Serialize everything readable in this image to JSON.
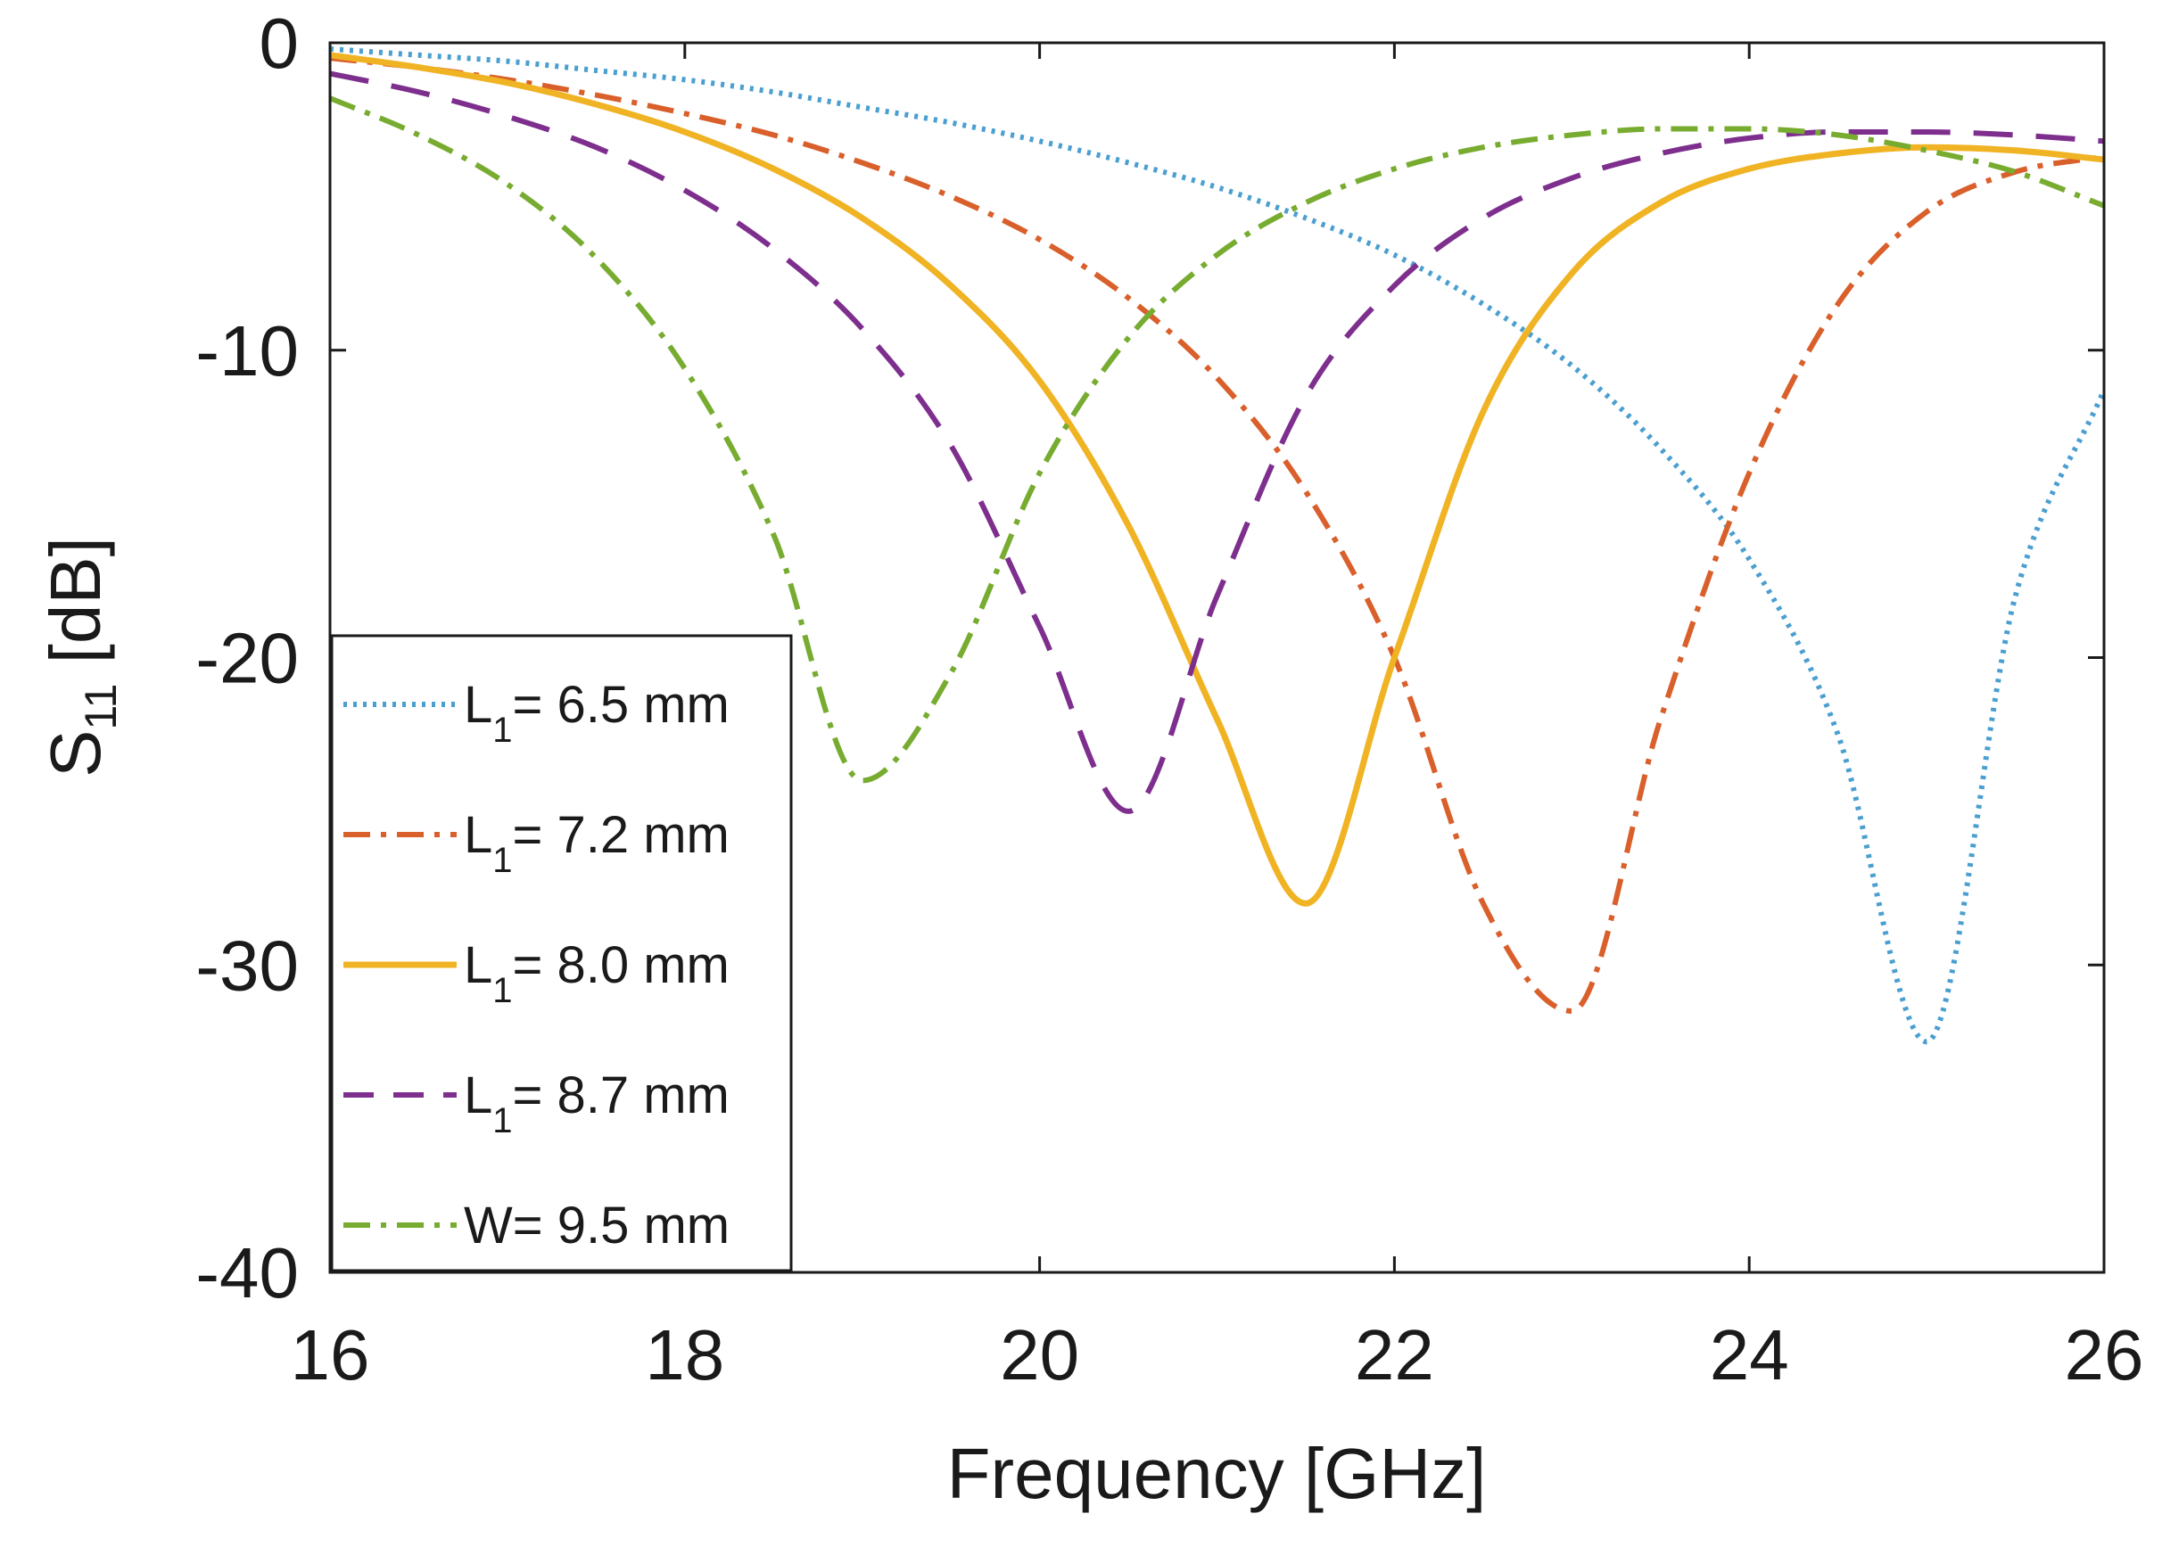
{
  "chart_data": {
    "type": "line",
    "title": "",
    "xlabel": "Frequency [GHz]",
    "ylabel": {
      "main": "S",
      "sub": "11",
      "unit": " [dB]"
    },
    "xlim": [
      16,
      26
    ],
    "ylim": [
      -40,
      0
    ],
    "xticks": [
      16,
      18,
      20,
      22,
      24,
      26
    ],
    "yticks": [
      0,
      -10,
      -20,
      -30,
      -40
    ],
    "xtick_labels": [
      "16",
      "18",
      "20",
      "22",
      "24",
      "26"
    ],
    "ytick_labels": [
      "0",
      "-10",
      "-20",
      "-30",
      "-40"
    ],
    "grid": false,
    "legend_position": "bottom-left",
    "x": [
      16,
      16.5,
      17,
      17.5,
      18,
      18.5,
      19,
      19.5,
      20,
      20.5,
      21,
      21.5,
      22,
      22.5,
      23,
      23.5,
      24,
      24.5,
      25,
      25.5,
      26
    ],
    "series": [
      {
        "name": "L1 = 6.5 mm",
        "legend": {
          "pre": "L",
          "sub": "1",
          "post": "= 6.5 mm"
        },
        "color": "#4a9fd0",
        "dash": "dotted",
        "values": [
          -0.2,
          -0.4,
          -0.6,
          -0.9,
          -1.2,
          -1.6,
          -2.1,
          -2.6,
          -3.2,
          -3.9,
          -4.7,
          -5.7,
          -6.9,
          -8.5,
          -10.5,
          -13.2,
          -16.8,
          -22.5,
          -32.5,
          -18.0,
          -11.3
        ]
      },
      {
        "name": "L1 = 7.2 mm",
        "legend": {
          "pre": "L",
          "sub": "1",
          "post": "= 7.2 mm"
        },
        "color": "#d95f2b",
        "dash": "dashdot",
        "values": [
          -0.5,
          -0.8,
          -1.2,
          -1.7,
          -2.3,
          -3.0,
          -3.9,
          -5.0,
          -6.4,
          -8.3,
          -10.9,
          -14.6,
          -20.0,
          -28.0,
          -31.5,
          -22.0,
          -14.0,
          -8.5,
          -5.5,
          -4.2,
          -3.7
        ]
      },
      {
        "name": "L1 = 8.0 mm",
        "legend": {
          "pre": "L",
          "sub": "1",
          "post": "= 8.0 mm"
        },
        "color": "#f0b323",
        "dash": "solid",
        "values": [
          -0.4,
          -0.8,
          -1.3,
          -2.0,
          -2.9,
          -4.1,
          -5.7,
          -7.9,
          -11.0,
          -15.7,
          -22.0,
          -28.0,
          -20.0,
          -12.0,
          -7.5,
          -5.2,
          -4.1,
          -3.6,
          -3.4,
          -3.5,
          -3.8
        ]
      },
      {
        "name": "L1 = 8.7 mm",
        "legend": {
          "pre": "L",
          "sub": "1",
          "post": "= 8.7 mm"
        },
        "color": "#7e2f8e",
        "dash": "dashed",
        "values": [
          -1.0,
          -1.6,
          -2.4,
          -3.4,
          -4.8,
          -6.7,
          -9.3,
          -13.1,
          -19.0,
          -25.0,
          -18.0,
          -11.5,
          -7.9,
          -5.7,
          -4.4,
          -3.6,
          -3.1,
          -2.9,
          -2.9,
          -3.0,
          -3.2
        ]
      },
      {
        "name": "W= 9.5 mm",
        "legend": {
          "pre": "W",
          "sub": "",
          "post": "= 9.5 mm"
        },
        "color": "#77ac30",
        "dash": "dashdot",
        "values": [
          -1.8,
          -3.0,
          -4.6,
          -7.0,
          -10.6,
          -16.0,
          -24.0,
          -20.5,
          -14.0,
          -9.6,
          -6.9,
          -5.2,
          -4.1,
          -3.4,
          -3.0,
          -2.8,
          -2.8,
          -3.0,
          -3.5,
          -4.2,
          -5.3
        ]
      }
    ]
  }
}
